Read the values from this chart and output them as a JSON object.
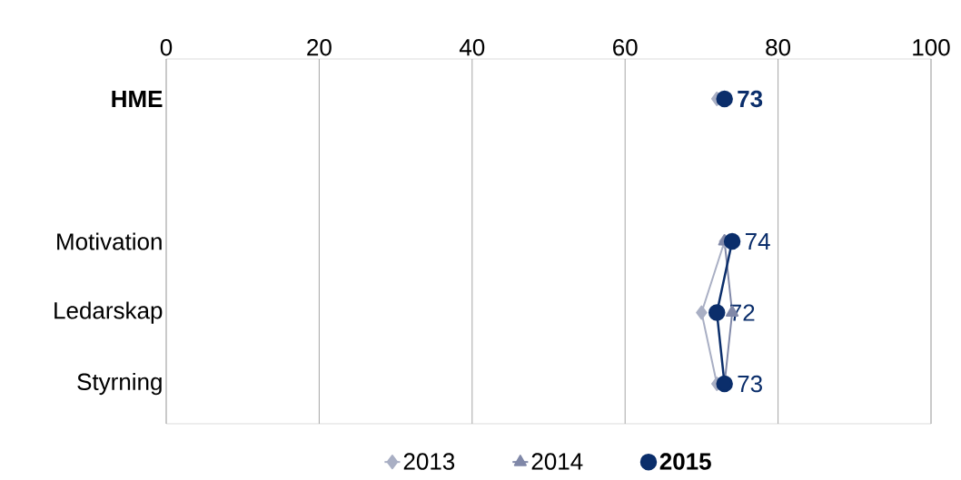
{
  "chart_data": {
    "type": "line",
    "orientation": "horizontal",
    "categories": [
      "**HME**",
      null,
      "Motivation",
      "Ledarskap",
      "Styrning"
    ],
    "series": [
      {
        "name": "2013",
        "color": "#a9afc4",
        "marker": "diamond",
        "values": [
          72,
          null,
          73,
          70,
          72
        ]
      },
      {
        "name": "2014",
        "color": "#8088a8",
        "marker": "triangle",
        "values": [
          null,
          null,
          73,
          74,
          73
        ]
      },
      {
        "name": "**2015**",
        "color": "#0b2e6b",
        "marker": "circle",
        "values": [
          73,
          null,
          74,
          72,
          73
        ],
        "value_labels": [
          "**73**",
          null,
          "74",
          "72",
          "73"
        ]
      }
    ],
    "xlim": [
      0,
      100
    ],
    "xticks": [
      0,
      20,
      40,
      60,
      80,
      100
    ],
    "grid": "x",
    "legend": "bottom",
    "line_style": "solid"
  }
}
